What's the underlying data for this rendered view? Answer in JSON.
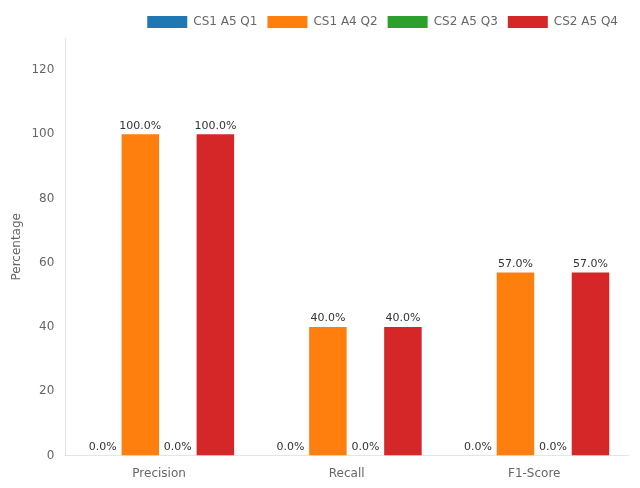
{
  "chart_data": {
    "type": "bar",
    "categories": [
      "Precision",
      "Recall",
      "F1-Score"
    ],
    "series": [
      {
        "name": "CS1 A5 Q1",
        "color": "#1f77b4",
        "values": [
          0.0,
          0.0,
          0.0
        ],
        "value_labels": [
          "0.0%",
          "0.0%",
          "0.0%"
        ]
      },
      {
        "name": "CS1 A4 Q2",
        "color": "#ff7f0e",
        "values": [
          100.0,
          40.0,
          57.0
        ],
        "value_labels": [
          "100.0%",
          "40.0%",
          "57.0%"
        ]
      },
      {
        "name": "CS2 A5 Q3",
        "color": "#2ca02c",
        "values": [
          0.0,
          0.0,
          0.0
        ],
        "value_labels": [
          "0.0%",
          "0.0%",
          "0.0%"
        ]
      },
      {
        "name": "CS2 A5 Q4",
        "color": "#d62728",
        "values": [
          100.0,
          40.0,
          57.0
        ],
        "value_labels": [
          "100.0%",
          "40.0%",
          "57.0%"
        ]
      }
    ],
    "ylabel": "Percentage",
    "ylim": [
      0,
      130
    ],
    "yticks": [
      0,
      20,
      40,
      60,
      80,
      100,
      120
    ],
    "legend": "upper right",
    "data_labels": true
  }
}
